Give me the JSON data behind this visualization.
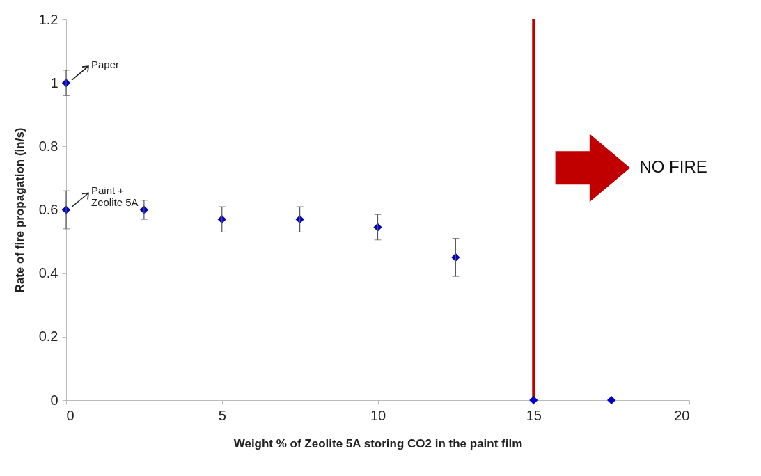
{
  "chart_data": {
    "type": "scatter",
    "xlabel": "Weight % of Zeolite 5A storing CO2 in the paint film",
    "ylabel": "Rate of fire propagation  (in/s)",
    "x": [
      0,
      0,
      2.5,
      5,
      7.5,
      10,
      12.5,
      15,
      17.5
    ],
    "series": [
      {
        "color": "#0000cc",
        "values": [
          1.0,
          0.6,
          0.6,
          0.57,
          0.57,
          0.545,
          0.45,
          0,
          0
        ],
        "errors": [
          0.04,
          0.06,
          0.03,
          0.04,
          0.04,
          0.04,
          0.06,
          null,
          null
        ]
      }
    ],
    "xlim": [
      0,
      20
    ],
    "xticks": [
      0,
      5,
      10,
      15,
      20
    ],
    "ylim": [
      0,
      1.2
    ],
    "yticks": [
      0,
      0.2,
      0.4,
      0.6,
      0.8,
      1,
      1.2
    ],
    "marker": "diamond",
    "grid": false,
    "legend": false,
    "ref_lines": [
      {
        "axis": "x",
        "value": 15,
        "color": "#c00000"
      }
    ],
    "annotations": [
      {
        "text": "Paper",
        "x": 0,
        "y": 1
      },
      {
        "text": "Paint + Zeolite 5A",
        "x": 0,
        "y": 0.6
      },
      "NO FIRE"
    ]
  }
}
